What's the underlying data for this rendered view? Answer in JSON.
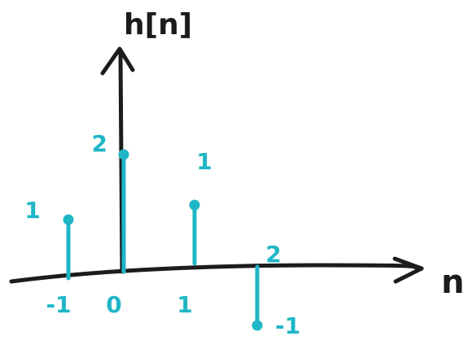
{
  "colors": {
    "axis": "#1c1c1c",
    "stem": "#1fb6c6"
  },
  "chart_data": {
    "type": "stem",
    "title": "h[n]",
    "xlabel": "n",
    "ylabel": "h[n]",
    "x": [
      -1,
      0,
      1,
      2
    ],
    "values": [
      1,
      2,
      1,
      -1
    ],
    "x_tick_labels": [
      "-1",
      "0",
      "1",
      "2"
    ],
    "value_labels": [
      "1",
      "2",
      "1",
      "-1"
    ],
    "xlim": [
      -2,
      4
    ],
    "ylim": [
      -1,
      3
    ],
    "grid": false,
    "legend": "none"
  }
}
